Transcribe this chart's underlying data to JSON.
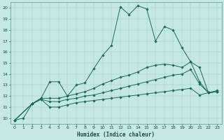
{
  "xlabel": "Humidex (Indice chaleur)",
  "background_color": "#c5e8e5",
  "line_color": "#1a6b5a",
  "xlim": [
    -0.5,
    23.5
  ],
  "ylim": [
    9.5,
    20.5
  ],
  "xticks": [
    0,
    1,
    2,
    3,
    4,
    5,
    6,
    7,
    8,
    9,
    10,
    11,
    12,
    13,
    14,
    15,
    16,
    17,
    18,
    19,
    20,
    21,
    22,
    23
  ],
  "yticks": [
    10,
    11,
    12,
    13,
    14,
    15,
    16,
    17,
    18,
    19,
    20
  ],
  "lines": [
    {
      "x": [
        0,
        1,
        2,
        3,
        4,
        5,
        6,
        7,
        8,
        9,
        10,
        11,
        12,
        13,
        14,
        15,
        16,
        17,
        18,
        19,
        20,
        21,
        22,
        23
      ],
      "y": [
        9.8,
        10.0,
        11.3,
        11.8,
        13.3,
        13.3,
        12.0,
        13.0,
        13.2,
        14.5,
        15.7,
        16.6,
        20.1,
        19.4,
        20.2,
        19.9,
        17.0,
        18.3,
        18.0,
        16.4,
        15.1,
        13.3,
        12.3,
        12.5
      ]
    },
    {
      "x": [
        0,
        2,
        3,
        4,
        5,
        6,
        7,
        8,
        9,
        10,
        11,
        12,
        13,
        14,
        15,
        16,
        17,
        18,
        19,
        20,
        21,
        22,
        23
      ],
      "y": [
        9.8,
        11.3,
        11.8,
        11.8,
        11.8,
        12.0,
        12.2,
        12.4,
        12.7,
        13.1,
        13.4,
        13.7,
        13.9,
        14.2,
        14.6,
        14.8,
        14.9,
        14.8,
        14.6,
        15.1,
        14.6,
        12.3,
        12.4
      ]
    },
    {
      "x": [
        0,
        2,
        3,
        4,
        5,
        6,
        7,
        8,
        9,
        10,
        11,
        12,
        13,
        14,
        15,
        16,
        17,
        18,
        19,
        20,
        21,
        22,
        23
      ],
      "y": [
        9.8,
        11.3,
        11.7,
        11.5,
        11.5,
        11.7,
        11.8,
        12.0,
        12.1,
        12.3,
        12.5,
        12.7,
        12.9,
        13.1,
        13.3,
        13.5,
        13.7,
        13.9,
        14.0,
        14.4,
        13.1,
        12.3,
        12.4
      ]
    },
    {
      "x": [
        0,
        2,
        3,
        4,
        5,
        6,
        7,
        8,
        9,
        10,
        11,
        12,
        13,
        14,
        15,
        16,
        17,
        18,
        19,
        20,
        21,
        22,
        23
      ],
      "y": [
        9.8,
        11.3,
        11.7,
        11.0,
        11.0,
        11.2,
        11.4,
        11.5,
        11.6,
        11.7,
        11.8,
        11.9,
        12.0,
        12.1,
        12.2,
        12.3,
        12.4,
        12.5,
        12.6,
        12.7,
        12.1,
        12.3,
        12.4
      ]
    }
  ]
}
